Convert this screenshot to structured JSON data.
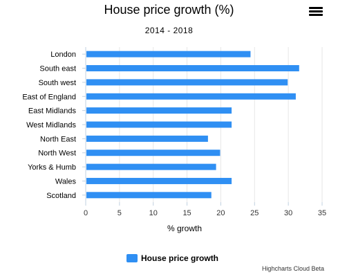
{
  "chart_data": {
    "type": "bar",
    "orientation": "horizontal",
    "title": "House price growth (%)",
    "subtitle": "2014 - 2018",
    "xlabel": "% growth",
    "categories": [
      "London",
      "South east",
      "South west",
      "East of England",
      "East Midlands",
      "West Midlands",
      "North East",
      "North West",
      "Yorks & Humb",
      "Wales",
      "Scotland"
    ],
    "series": [
      {
        "name": "House price growth",
        "values": [
          24.3,
          31.5,
          29.8,
          31.0,
          21.5,
          21.5,
          18.0,
          19.8,
          19.2,
          21.5,
          18.5
        ]
      }
    ],
    "xlim": [
      0,
      35
    ],
    "ticks": [
      0,
      5,
      10,
      15,
      20,
      25,
      30,
      35
    ],
    "grid": true,
    "legend": "bottom",
    "colors": {
      "bar": "#2f8ff3",
      "grid": "#e6e6e6",
      "axis": "#333333"
    }
  },
  "menu": {
    "icon": "hamburger-menu-icon"
  },
  "credits": "Highcharts Cloud Beta"
}
